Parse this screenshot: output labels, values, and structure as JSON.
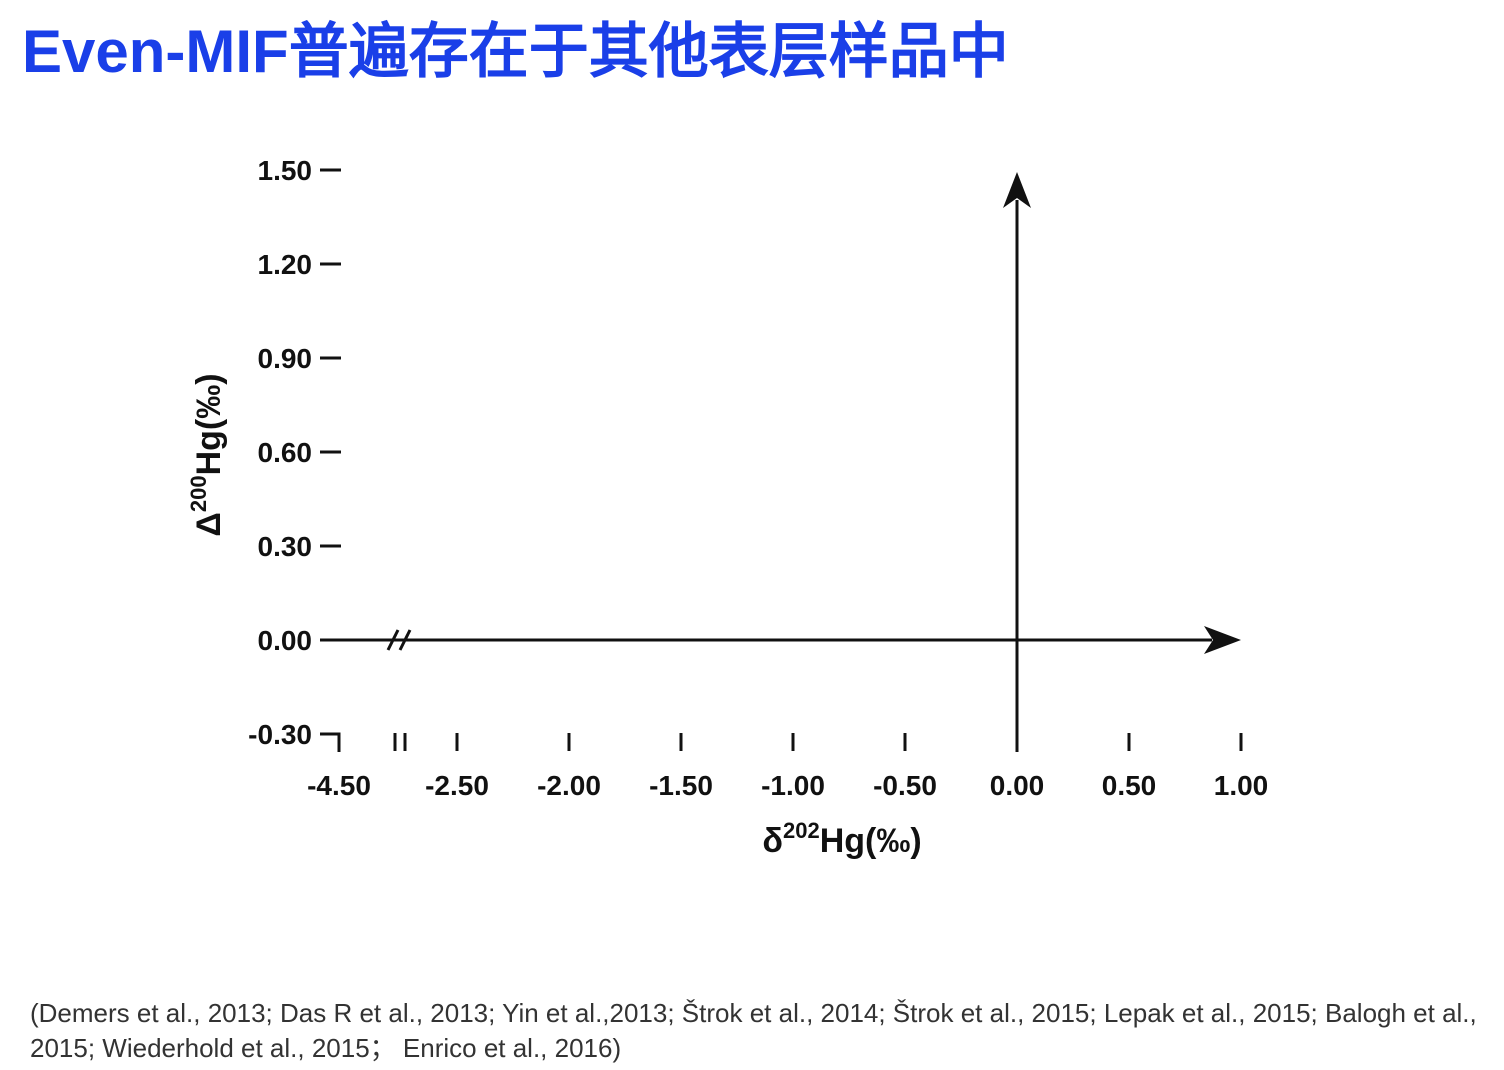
{
  "title": "Even-MIF普遍存在于其他表层样品中",
  "references": "(Demers et al., 2013; Das R et al., 2013; Yin et al.,2013;  Štrok et al., 2014; Štrok et al., 2015; Lepak et al., 2015; Balogh et al., 2015; Wiederhold et al., 2015； Enrico et al., 2016)",
  "colors": {
    "title": "#1a3fe8",
    "axis": "#111111",
    "references": "#333333"
  },
  "chart_data": {
    "type": "scatter",
    "xlabel": {
      "prefix": "δ",
      "sup": "202",
      "main": "Hg(‰)"
    },
    "ylabel": {
      "prefix": "Δ",
      "sup": "200",
      "main": "Hg(‰)"
    },
    "x_tick_labels": [
      "-4.50",
      "-2.50",
      "-2.00",
      "-1.50",
      "-1.00",
      "-0.50",
      "0.00",
      "0.50",
      "1.00"
    ],
    "y_tick_labels": [
      "1.50",
      "1.20",
      "0.90",
      "0.60",
      "0.30",
      "0.00",
      "-0.30"
    ],
    "x_axis_break": true,
    "y_zero_line": 0.0,
    "x_zero_line": 0.0,
    "xlim": [
      -4.5,
      1.0
    ],
    "ylim": [
      -0.3,
      1.5
    ],
    "series": [],
    "grid": false
  }
}
